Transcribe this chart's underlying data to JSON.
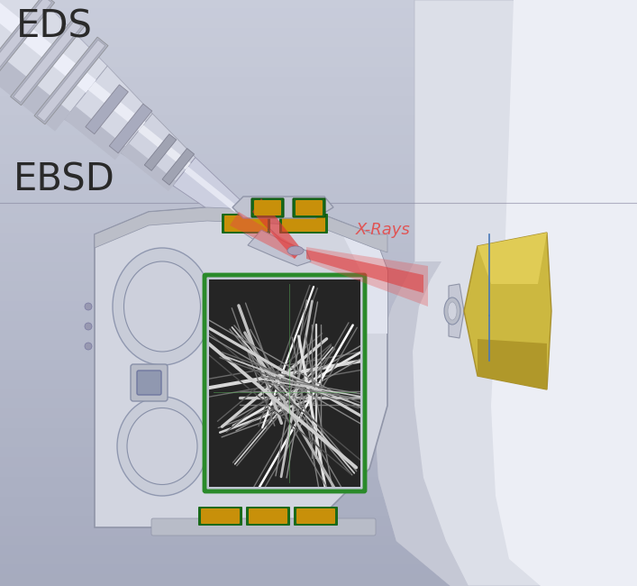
{
  "eds_label": "EDS",
  "ebsd_label": "EBSD",
  "xrays_label": "X-Rays",
  "xrays_label_color": "#e05555",
  "eds_label_color": "#2a2a2a",
  "ebsd_label_color": "#2a2a2a",
  "bg_color": "#b8bdd0",
  "bg_top_color": "#c8ccda",
  "bg_bottom_color": "#a8adc2",
  "figsize": [
    7.07,
    6.5
  ],
  "dpi": 100
}
